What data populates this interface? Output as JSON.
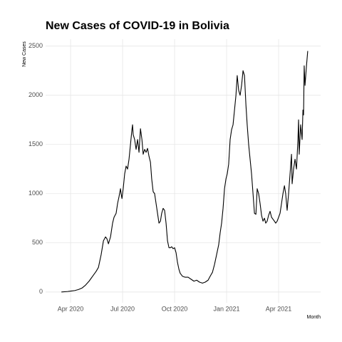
{
  "chart_data": {
    "type": "line",
    "title": "New Cases of COVID-19 in Bolivia",
    "x_label": "Month",
    "y_label": "New Cases",
    "color": "#000000",
    "grid": true,
    "xlim": [
      2020.13,
      2021.452
    ],
    "ylim": [
      -110,
      2570
    ],
    "xticks": [
      {
        "value": 2020.25,
        "label": "Apr 2020"
      },
      {
        "value": 2020.5,
        "label": "Jul 2020"
      },
      {
        "value": 2020.75,
        "label": "Oct 2020"
      },
      {
        "value": 2021.0,
        "label": "Jan 2021"
      },
      {
        "value": 2021.25,
        "label": "Apr 2021"
      }
    ],
    "yticks": [
      0,
      500,
      1000,
      1500,
      2000,
      2500
    ],
    "x": [
      2020.206,
      2020.236,
      2020.253,
      2020.271,
      2020.288,
      2020.305,
      2020.322,
      2020.339,
      2020.356,
      2020.373,
      2020.384,
      2020.397,
      2020.408,
      2020.418,
      2020.425,
      2020.432,
      2020.442,
      2020.452,
      2020.459,
      2020.469,
      2020.476,
      2020.483,
      2020.49,
      2020.493,
      2020.497,
      2020.503,
      2020.51,
      2020.517,
      2020.524,
      2020.531,
      2020.538,
      2020.545,
      2020.548,
      2020.551,
      2020.558,
      2020.565,
      2020.572,
      2020.579,
      2020.586,
      2020.593,
      2020.599,
      2020.606,
      2020.613,
      2020.62,
      2020.627,
      2020.634,
      2020.64,
      2020.647,
      2020.654,
      2020.661,
      2020.668,
      2020.675,
      2020.682,
      2020.688,
      2020.695,
      2020.702,
      2020.709,
      2020.716,
      2020.723,
      2020.73,
      2020.736,
      2020.743,
      2020.75,
      2020.757,
      2020.764,
      2020.771,
      2020.777,
      2020.788,
      2020.801,
      2020.815,
      2020.829,
      2020.843,
      2020.856,
      2020.87,
      2020.884,
      2020.897,
      2020.911,
      2020.921,
      2020.932,
      2020.942,
      2020.952,
      2020.962,
      2020.969,
      2020.976,
      2020.983,
      2020.99,
      2020.997,
      2021.003,
      2021.01,
      2021.017,
      2021.024,
      2021.031,
      2021.038,
      2021.045,
      2021.051,
      2021.058,
      2021.065,
      2021.072,
      2021.079,
      2021.086,
      2021.093,
      2021.099,
      2021.106,
      2021.113,
      2021.12,
      2021.127,
      2021.134,
      2021.141,
      2021.147,
      2021.154,
      2021.161,
      2021.168,
      2021.175,
      2021.182,
      2021.188,
      2021.195,
      2021.202,
      2021.209,
      2021.216,
      2021.223,
      2021.23,
      2021.236,
      2021.243,
      2021.25,
      2021.257,
      2021.264,
      2021.271,
      2021.278,
      2021.284,
      2021.291,
      2021.298,
      2021.305,
      2021.312,
      2021.315,
      2021.322,
      2021.329,
      2021.336,
      2021.343,
      2021.346,
      2021.349,
      2021.356,
      2021.363,
      2021.367,
      2021.37,
      2021.373,
      2021.377,
      2021.384,
      2021.39
    ],
    "values": [
      0,
      5,
      10,
      15,
      25,
      40,
      70,
      110,
      160,
      210,
      250,
      380,
      520,
      560,
      540,
      490,
      560,
      700,
      760,
      800,
      900,
      970,
      1050,
      1000,
      950,
      1050,
      1200,
      1280,
      1250,
      1350,
      1500,
      1650,
      1700,
      1600,
      1550,
      1450,
      1550,
      1420,
      1660,
      1550,
      1400,
      1450,
      1420,
      1460,
      1380,
      1320,
      1150,
      1020,
      1000,
      900,
      800,
      700,
      720,
      800,
      850,
      830,
      700,
      520,
      450,
      450,
      460,
      440,
      450,
      400,
      300,
      230,
      190,
      160,
      150,
      150,
      130,
      110,
      120,
      100,
      90,
      100,
      120,
      160,
      200,
      280,
      380,
      480,
      600,
      700,
      850,
      1050,
      1150,
      1200,
      1300,
      1550,
      1650,
      1700,
      1850,
      2000,
      2200,
      2050,
      2000,
      2100,
      2250,
      2200,
      1900,
      1700,
      1500,
      1350,
      1200,
      1000,
      800,
      790,
      1050,
      1000,
      900,
      780,
      720,
      750,
      700,
      720,
      780,
      820,
      760,
      740,
      720,
      700,
      720,
      760,
      800,
      900,
      1000,
      1080,
      1000,
      830,
      1000,
      1200,
      1400,
      1100,
      1250,
      1350,
      1250,
      1550,
      1750,
      1400,
      1700,
      1550,
      1850,
      1800,
      2300,
      2100,
      2300,
      2450
    ]
  }
}
